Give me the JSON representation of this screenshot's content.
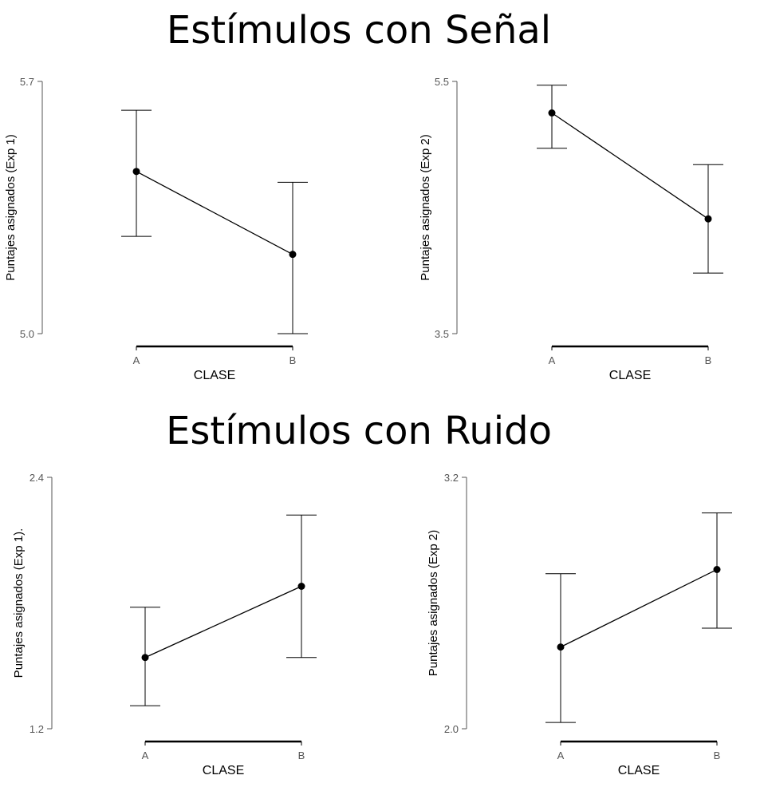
{
  "titles": {
    "top": "Estímulos con Señal",
    "bottom": "Estímulos con Ruido"
  },
  "chart_data": [
    {
      "type": "line",
      "group": "Estímulos con Señal",
      "categories": [
        "A",
        "B"
      ],
      "xlabel": "CLASE",
      "ylabel": "Puntajes asignados (Exp 1)",
      "ylim": [
        5.0,
        5.7
      ],
      "yticks": [
        "5.0",
        "5.7"
      ],
      "series": [
        {
          "values": [
            5.45,
            5.22
          ],
          "lower": [
            5.27,
            5.0
          ],
          "upper": [
            5.62,
            5.42
          ]
        }
      ]
    },
    {
      "type": "line",
      "group": "Estímulos con Señal",
      "categories": [
        "A",
        "B"
      ],
      "xlabel": "CLASE",
      "ylabel": "Puntajes asignados (Exp 2)",
      "ylim": [
        3.5,
        5.5
      ],
      "yticks": [
        "3.5",
        "5.5"
      ],
      "series": [
        {
          "values": [
            5.25,
            4.41
          ],
          "lower": [
            4.97,
            3.98
          ],
          "upper": [
            5.47,
            4.84
          ]
        }
      ]
    },
    {
      "type": "line",
      "group": "Estímulos con Ruido",
      "categories": [
        "A",
        "B"
      ],
      "xlabel": "CLASE",
      "ylabel": "Puntajes asignados (Exp 1).",
      "ylim": [
        1.2,
        2.4
      ],
      "yticks": [
        "1.2",
        "2.4"
      ],
      "series": [
        {
          "values": [
            1.54,
            1.88
          ],
          "lower": [
            1.31,
            1.54
          ],
          "upper": [
            1.78,
            2.22
          ]
        }
      ]
    },
    {
      "type": "line",
      "group": "Estímulos con Ruido",
      "categories": [
        "A",
        "B"
      ],
      "xlabel": "CLASE",
      "ylabel": "Puntajes asignados (Exp 2)",
      "ylim": [
        2.0,
        3.2
      ],
      "yticks": [
        "2.0",
        "3.2"
      ],
      "series": [
        {
          "values": [
            2.39,
            2.76
          ],
          "lower": [
            2.03,
            2.48
          ],
          "upper": [
            2.74,
            3.03
          ]
        }
      ]
    }
  ]
}
